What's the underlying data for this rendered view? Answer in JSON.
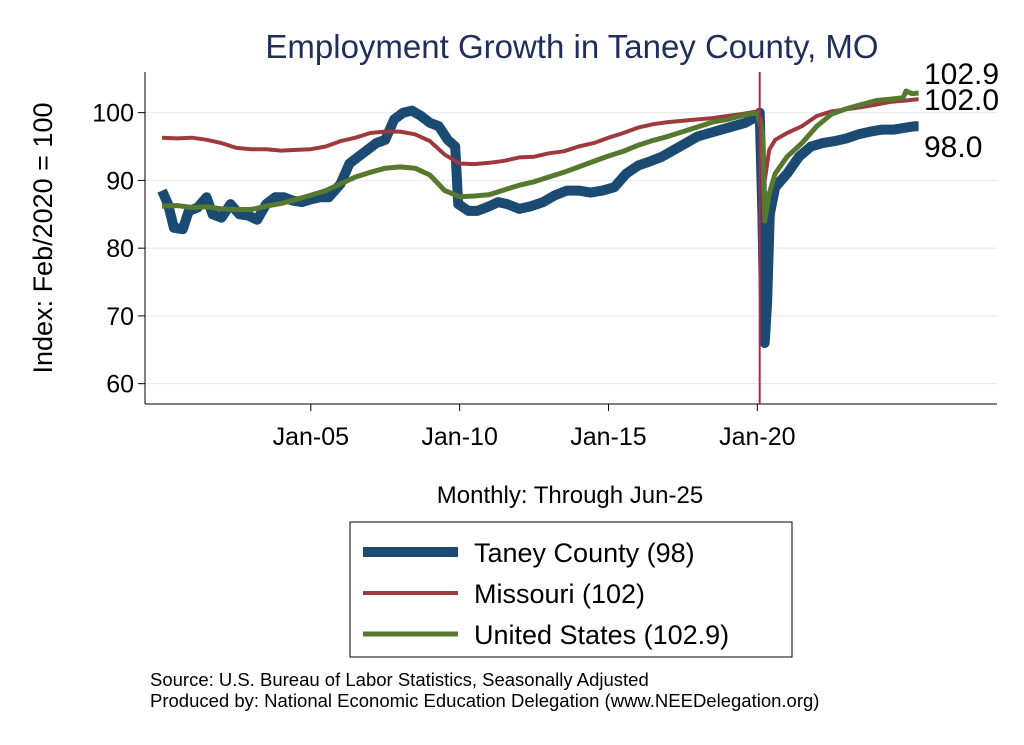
{
  "chart_data": {
    "type": "line",
    "title": "Employment Growth in Taney  County, MO",
    "title_color": "#1f2f5a",
    "ylabel": "Index: Feb/2020 = 100",
    "xlabel": "Monthly: Through Jun-25",
    "x_range": [
      2000.0,
      2025.5
    ],
    "ylim": [
      57,
      106
    ],
    "y_ticks": [
      60,
      70,
      80,
      90,
      100
    ],
    "x_ticks": [
      {
        "label": "Jan-05",
        "value": 2005.0
      },
      {
        "label": "Jan-10",
        "value": 2010.0
      },
      {
        "label": "Jan-15",
        "value": 2015.0
      },
      {
        "label": "Jan-20",
        "value": 2020.0
      }
    ],
    "x_axis_extent": [
      1999.5,
      2028.0
    ],
    "reference_line": {
      "x": 2020.08,
      "color": "#b22a4a"
    },
    "grid": true,
    "series": [
      {
        "name": "Taney  County (98)",
        "color": "#1b4a72",
        "end_label": "98.0",
        "points": [
          [
            2000.0,
            88.5
          ],
          [
            2000.2,
            86.5
          ],
          [
            2000.4,
            83.0
          ],
          [
            2000.7,
            82.8
          ],
          [
            2000.9,
            85.5
          ],
          [
            2001.2,
            86.0
          ],
          [
            2001.5,
            87.5
          ],
          [
            2001.7,
            85.0
          ],
          [
            2002.0,
            84.5
          ],
          [
            2002.3,
            86.5
          ],
          [
            2002.6,
            85.0
          ],
          [
            2002.9,
            84.8
          ],
          [
            2003.2,
            84.2
          ],
          [
            2003.5,
            86.5
          ],
          [
            2003.8,
            87.5
          ],
          [
            2004.1,
            87.5
          ],
          [
            2004.4,
            87.0
          ],
          [
            2004.7,
            86.8
          ],
          [
            2005.0,
            87.2
          ],
          [
            2005.3,
            87.5
          ],
          [
            2005.6,
            87.5
          ],
          [
            2006.0,
            89.5
          ],
          [
            2006.3,
            92.5
          ],
          [
            2006.6,
            93.5
          ],
          [
            2006.9,
            94.5
          ],
          [
            2007.2,
            95.5
          ],
          [
            2007.5,
            96.0
          ],
          [
            2007.8,
            99.0
          ],
          [
            2008.1,
            100.0
          ],
          [
            2008.4,
            100.3
          ],
          [
            2008.7,
            99.5
          ],
          [
            2009.0,
            98.5
          ],
          [
            2009.3,
            98.0
          ],
          [
            2009.6,
            96.0
          ],
          [
            2009.85,
            95.0
          ],
          [
            2009.95,
            86.5
          ],
          [
            2010.3,
            85.5
          ],
          [
            2010.6,
            85.5
          ],
          [
            2011.0,
            86.2
          ],
          [
            2011.3,
            86.8
          ],
          [
            2011.6,
            86.5
          ],
          [
            2012.0,
            85.8
          ],
          [
            2012.4,
            86.2
          ],
          [
            2012.8,
            86.8
          ],
          [
            2013.2,
            87.8
          ],
          [
            2013.6,
            88.5
          ],
          [
            2014.0,
            88.5
          ],
          [
            2014.4,
            88.2
          ],
          [
            2014.8,
            88.5
          ],
          [
            2015.2,
            89.0
          ],
          [
            2015.6,
            91.0
          ],
          [
            2016.0,
            92.2
          ],
          [
            2016.4,
            92.8
          ],
          [
            2016.8,
            93.5
          ],
          [
            2017.2,
            94.5
          ],
          [
            2017.6,
            95.5
          ],
          [
            2018.0,
            96.5
          ],
          [
            2018.4,
            97.0
          ],
          [
            2018.8,
            97.5
          ],
          [
            2019.2,
            98.0
          ],
          [
            2019.6,
            98.5
          ],
          [
            2020.0,
            99.5
          ],
          [
            2020.08,
            100.0
          ],
          [
            2020.17,
            85.0
          ],
          [
            2020.25,
            66.0
          ],
          [
            2020.33,
            72.0
          ],
          [
            2020.42,
            85.0
          ],
          [
            2020.6,
            89.0
          ],
          [
            2021.0,
            91.0
          ],
          [
            2021.4,
            93.5
          ],
          [
            2021.8,
            95.0
          ],
          [
            2022.2,
            95.5
          ],
          [
            2022.6,
            95.8
          ],
          [
            2023.0,
            96.2
          ],
          [
            2023.4,
            96.8
          ],
          [
            2023.8,
            97.2
          ],
          [
            2024.2,
            97.5
          ],
          [
            2024.6,
            97.5
          ],
          [
            2025.0,
            97.8
          ],
          [
            2025.3,
            98.0
          ],
          [
            2025.42,
            98.0
          ]
        ]
      },
      {
        "name": "Missouri (102)",
        "color": "#9c3a3e",
        "end_label": "102.0",
        "points": [
          [
            2000.0,
            96.3
          ],
          [
            2000.5,
            96.2
          ],
          [
            2001.0,
            96.3
          ],
          [
            2001.5,
            96.0
          ],
          [
            2002.0,
            95.5
          ],
          [
            2002.5,
            94.8
          ],
          [
            2003.0,
            94.6
          ],
          [
            2003.5,
            94.6
          ],
          [
            2004.0,
            94.4
          ],
          [
            2004.5,
            94.5
          ],
          [
            2005.0,
            94.6
          ],
          [
            2005.5,
            95.0
          ],
          [
            2006.0,
            95.8
          ],
          [
            2006.5,
            96.3
          ],
          [
            2007.0,
            97.0
          ],
          [
            2007.5,
            97.2
          ],
          [
            2008.0,
            97.2
          ],
          [
            2008.5,
            96.8
          ],
          [
            2009.0,
            95.8
          ],
          [
            2009.5,
            93.8
          ],
          [
            2010.0,
            92.5
          ],
          [
            2010.5,
            92.4
          ],
          [
            2011.0,
            92.6
          ],
          [
            2011.5,
            92.9
          ],
          [
            2012.0,
            93.4
          ],
          [
            2012.5,
            93.5
          ],
          [
            2013.0,
            94.0
          ],
          [
            2013.5,
            94.3
          ],
          [
            2014.0,
            95.0
          ],
          [
            2014.5,
            95.5
          ],
          [
            2015.0,
            96.3
          ],
          [
            2015.5,
            97.0
          ],
          [
            2016.0,
            97.8
          ],
          [
            2016.5,
            98.3
          ],
          [
            2017.0,
            98.6
          ],
          [
            2017.5,
            98.8
          ],
          [
            2018.0,
            99.0
          ],
          [
            2018.5,
            99.2
          ],
          [
            2019.0,
            99.5
          ],
          [
            2019.5,
            99.8
          ],
          [
            2020.0,
            100.2
          ],
          [
            2020.15,
            98.5
          ],
          [
            2020.25,
            90.0
          ],
          [
            2020.4,
            94.5
          ],
          [
            2020.6,
            96.0
          ],
          [
            2021.0,
            97.0
          ],
          [
            2021.5,
            98.0
          ],
          [
            2022.0,
            99.5
          ],
          [
            2022.5,
            100.2
          ],
          [
            2023.0,
            100.5
          ],
          [
            2023.5,
            100.8
          ],
          [
            2024.0,
            101.2
          ],
          [
            2024.5,
            101.6
          ],
          [
            2025.0,
            101.8
          ],
          [
            2025.42,
            102.0
          ]
        ]
      },
      {
        "name": "United States (102.9)",
        "color": "#56782f",
        "end_label": "102.9",
        "points": [
          [
            2000.0,
            86.2
          ],
          [
            2000.5,
            86.3
          ],
          [
            2001.0,
            86.0
          ],
          [
            2001.5,
            86.1
          ],
          [
            2002.0,
            85.8
          ],
          [
            2002.5,
            85.7
          ],
          [
            2003.0,
            85.7
          ],
          [
            2003.5,
            86.2
          ],
          [
            2004.0,
            86.6
          ],
          [
            2004.5,
            87.2
          ],
          [
            2005.0,
            87.8
          ],
          [
            2005.5,
            88.5
          ],
          [
            2006.0,
            89.5
          ],
          [
            2006.5,
            90.5
          ],
          [
            2007.0,
            91.2
          ],
          [
            2007.5,
            91.8
          ],
          [
            2008.0,
            92.0
          ],
          [
            2008.5,
            91.8
          ],
          [
            2009.0,
            90.8
          ],
          [
            2009.5,
            88.5
          ],
          [
            2010.0,
            87.6
          ],
          [
            2010.5,
            87.7
          ],
          [
            2011.0,
            87.9
          ],
          [
            2011.5,
            88.6
          ],
          [
            2012.0,
            89.3
          ],
          [
            2012.5,
            89.8
          ],
          [
            2013.0,
            90.5
          ],
          [
            2013.5,
            91.2
          ],
          [
            2014.0,
            92.0
          ],
          [
            2014.5,
            92.8
          ],
          [
            2015.0,
            93.6
          ],
          [
            2015.5,
            94.3
          ],
          [
            2016.0,
            95.2
          ],
          [
            2016.5,
            95.9
          ],
          [
            2017.0,
            96.5
          ],
          [
            2017.5,
            97.2
          ],
          [
            2018.0,
            97.9
          ],
          [
            2018.5,
            98.6
          ],
          [
            2019.0,
            99.0
          ],
          [
            2019.5,
            99.6
          ],
          [
            2020.0,
            100.0
          ],
          [
            2020.17,
            97.0
          ],
          [
            2020.25,
            84.0
          ],
          [
            2020.4,
            88.0
          ],
          [
            2020.6,
            91.0
          ],
          [
            2021.0,
            93.5
          ],
          [
            2021.5,
            95.5
          ],
          [
            2022.0,
            98.0
          ],
          [
            2022.5,
            99.8
          ],
          [
            2023.0,
            100.6
          ],
          [
            2023.5,
            101.2
          ],
          [
            2024.0,
            101.8
          ],
          [
            2024.5,
            102.0
          ],
          [
            2024.9,
            102.2
          ],
          [
            2025.0,
            103.2
          ],
          [
            2025.2,
            102.8
          ],
          [
            2025.42,
            102.9
          ]
        ]
      }
    ]
  },
  "source_line_1": "Source: U.S. Bureau of Labor Statistics, Seasonally Adjusted",
  "source_line_2": "Produced by: National Economic Education Delegation (www.NEEDelegation.org)"
}
